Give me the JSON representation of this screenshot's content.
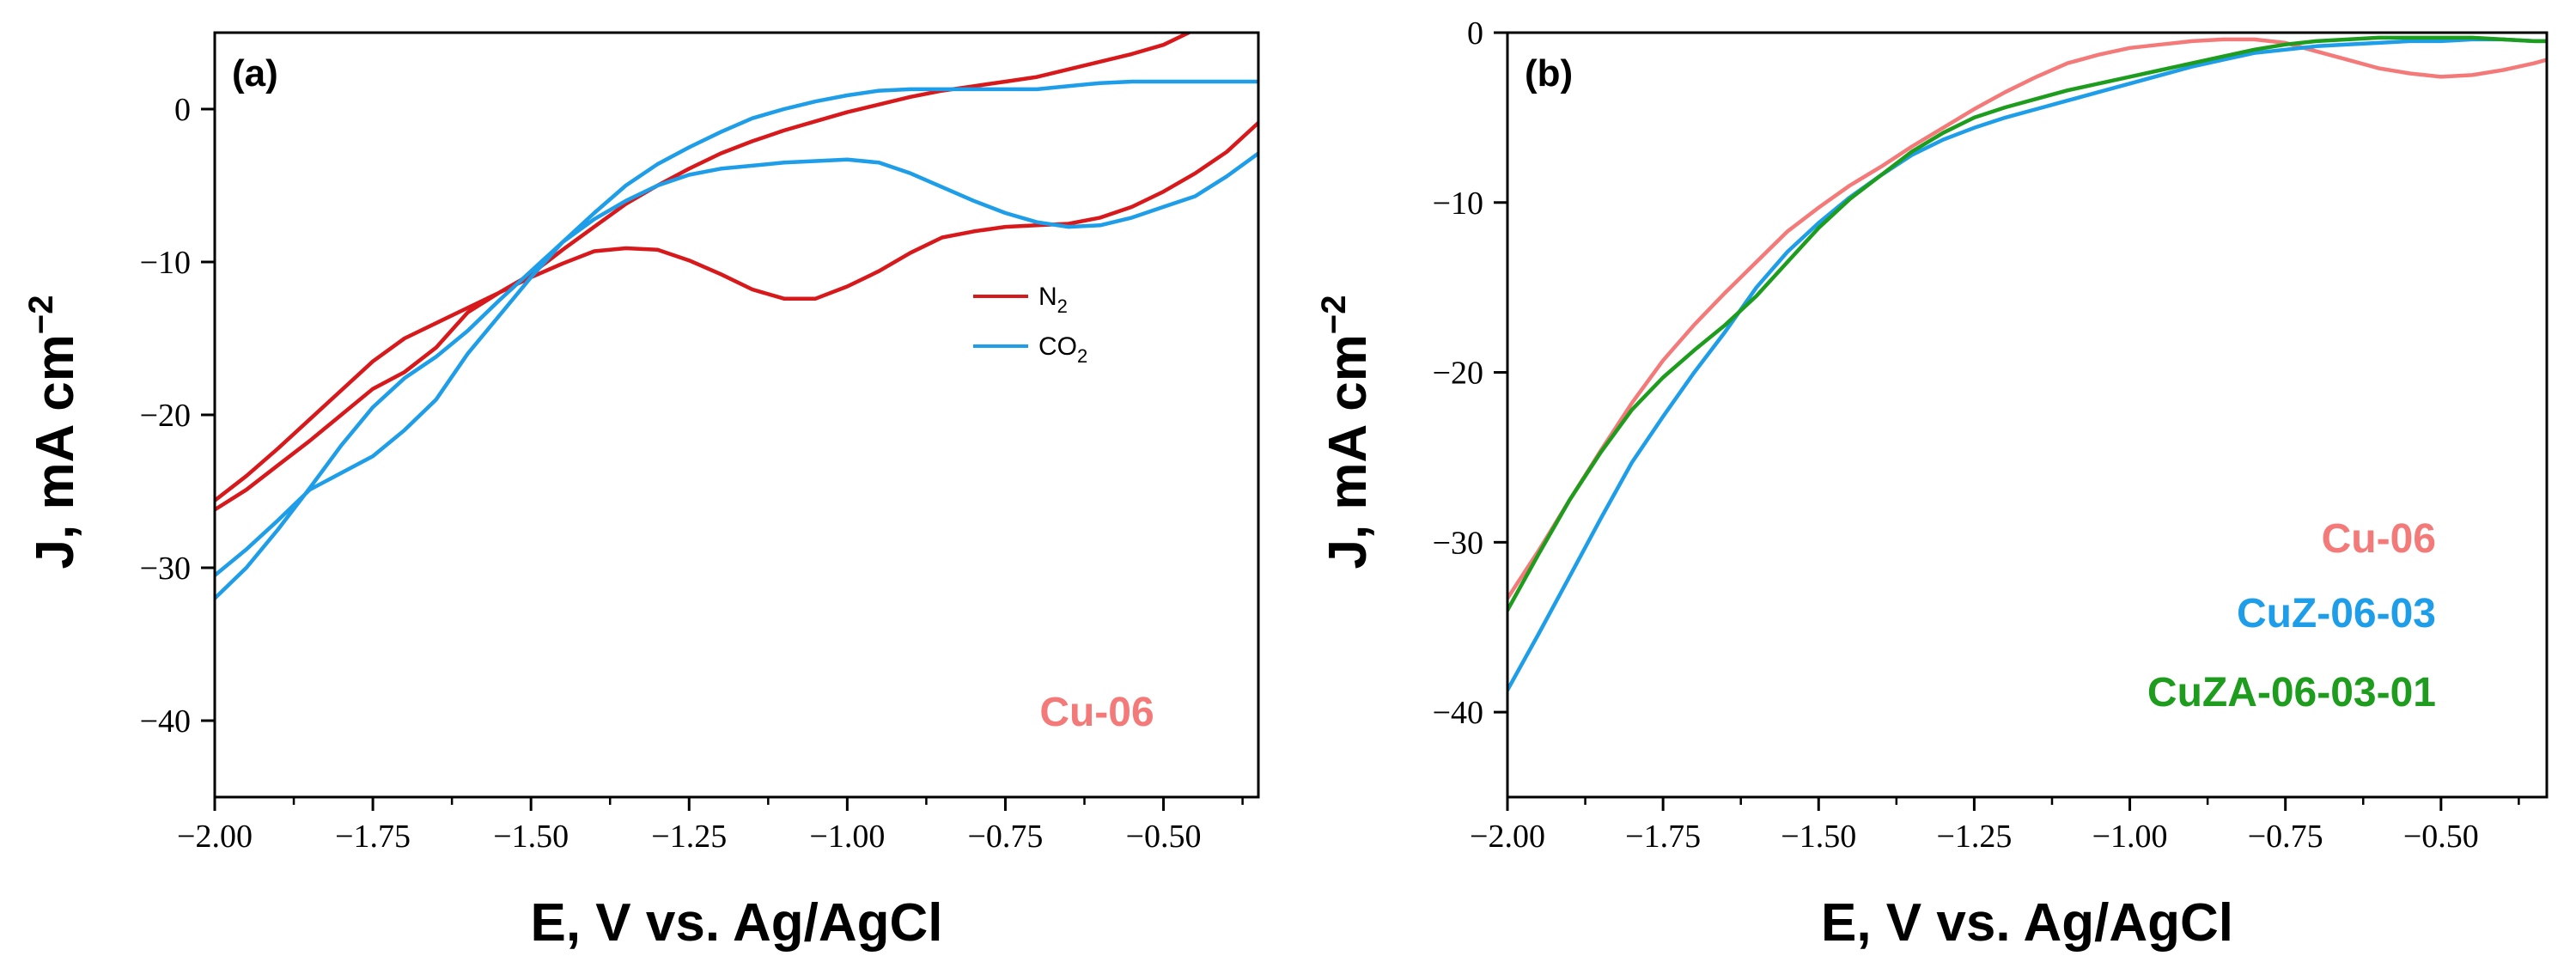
{
  "colors": {
    "n2": "#d7191c",
    "co2": "#1e9de8",
    "cu06": "#f47a7a",
    "cuz": "#1e9de8",
    "cuza": "#1d9c1d"
  },
  "chart_data": [
    {
      "type": "line",
      "panel_label": "(a)",
      "xlabel": "E, V vs. Ag/AgCl",
      "ylabel": "J, mA cm",
      "ylabel_sup": "−2",
      "xlim": [
        -2.0,
        -0.35
      ],
      "ylim": [
        -45,
        5
      ],
      "xticks": [
        -2.0,
        -1.75,
        -1.5,
        -1.25,
        -1.0,
        -0.75,
        -0.5
      ],
      "xtick_labels": [
        "−2.00",
        "−1.75",
        "−1.50",
        "−1.25",
        "−1.00",
        "−0.75",
        "−0.50"
      ],
      "yticks": [
        0,
        -10,
        -20,
        -30,
        -40
      ],
      "ytick_labels": [
        "0",
        "−10",
        "−20",
        "−30",
        "−40"
      ],
      "legend": [
        {
          "base": "N",
          "sub": "2"
        },
        {
          "base": "CO",
          "sub": "2"
        }
      ],
      "sample_label": "Cu-06",
      "series": [
        {
          "name": "N2",
          "color_key": "n2",
          "points": [
            [
              -2.0,
              -26.2
            ],
            [
              -1.95,
              -24.9
            ],
            [
              -1.9,
              -23.3
            ],
            [
              -1.85,
              -21.7
            ],
            [
              -1.8,
              -20.0
            ],
            [
              -1.75,
              -18.3
            ],
            [
              -1.7,
              -17.2
            ],
            [
              -1.65,
              -15.6
            ],
            [
              -1.6,
              -13.3
            ],
            [
              -1.55,
              -12.0
            ],
            [
              -1.5,
              -11.0
            ],
            [
              -1.45,
              -10.1
            ],
            [
              -1.4,
              -9.3
            ],
            [
              -1.35,
              -9.1
            ],
            [
              -1.3,
              -9.2
            ],
            [
              -1.25,
              -9.9
            ],
            [
              -1.2,
              -10.8
            ],
            [
              -1.15,
              -11.8
            ],
            [
              -1.1,
              -12.4
            ],
            [
              -1.05,
              -12.4
            ],
            [
              -1.0,
              -11.6
            ],
            [
              -0.95,
              -10.6
            ],
            [
              -0.9,
              -9.4
            ],
            [
              -0.85,
              -8.4
            ],
            [
              -0.8,
              -8.0
            ],
            [
              -0.75,
              -7.7
            ],
            [
              -0.7,
              -7.6
            ],
            [
              -0.65,
              -7.5
            ],
            [
              -0.6,
              -7.1
            ],
            [
              -0.55,
              -6.4
            ],
            [
              -0.5,
              -5.4
            ],
            [
              -0.45,
              -4.2
            ],
            [
              -0.4,
              -2.8
            ],
            [
              -0.35,
              -0.9
            ],
            null,
            [
              -2.0,
              -25.6
            ],
            [
              -1.95,
              -24.0
            ],
            [
              -1.9,
              -22.2
            ],
            [
              -1.85,
              -20.3
            ],
            [
              -1.8,
              -18.4
            ],
            [
              -1.75,
              -16.5
            ],
            [
              -1.7,
              -15.0
            ],
            [
              -1.65,
              -14.0
            ],
            [
              -1.6,
              -13.0
            ],
            [
              -1.55,
              -12.0
            ],
            [
              -1.5,
              -10.8
            ],
            [
              -1.45,
              -9.2
            ],
            [
              -1.4,
              -7.7
            ],
            [
              -1.35,
              -6.2
            ],
            [
              -1.3,
              -5.0
            ],
            [
              -1.25,
              -3.9
            ],
            [
              -1.2,
              -2.9
            ],
            [
              -1.15,
              -2.1
            ],
            [
              -1.1,
              -1.4
            ],
            [
              -1.05,
              -0.8
            ],
            [
              -1.0,
              -0.2
            ],
            [
              -0.95,
              0.3
            ],
            [
              -0.9,
              0.8
            ],
            [
              -0.85,
              1.2
            ],
            [
              -0.8,
              1.5
            ],
            [
              -0.75,
              1.8
            ],
            [
              -0.7,
              2.1
            ],
            [
              -0.65,
              2.6
            ],
            [
              -0.6,
              3.1
            ],
            [
              -0.55,
              3.6
            ],
            [
              -0.5,
              4.2
            ],
            [
              -0.46,
              5.0
            ]
          ]
        },
        {
          "name": "CO2",
          "color_key": "co2",
          "points": [
            [
              -2.0,
              -32.0
            ],
            [
              -1.95,
              -30.0
            ],
            [
              -1.9,
              -27.5
            ],
            [
              -1.85,
              -24.8
            ],
            [
              -1.8,
              -22.0
            ],
            [
              -1.75,
              -19.5
            ],
            [
              -1.7,
              -17.6
            ],
            [
              -1.65,
              -16.2
            ],
            [
              -1.6,
              -14.5
            ],
            [
              -1.55,
              -12.5
            ],
            [
              -1.5,
              -10.6
            ],
            [
              -1.45,
              -8.7
            ],
            [
              -1.4,
              -7.2
            ],
            [
              -1.35,
              -6.0
            ],
            [
              -1.3,
              -5.0
            ],
            [
              -1.25,
              -4.3
            ],
            [
              -1.2,
              -3.9
            ],
            [
              -1.15,
              -3.7
            ],
            [
              -1.1,
              -3.5
            ],
            [
              -1.05,
              -3.4
            ],
            [
              -1.0,
              -3.3
            ],
            [
              -0.95,
              -3.5
            ],
            [
              -0.9,
              -4.2
            ],
            [
              -0.85,
              -5.1
            ],
            [
              -0.8,
              -6.0
            ],
            [
              -0.75,
              -6.8
            ],
            [
              -0.7,
              -7.4
            ],
            [
              -0.65,
              -7.7
            ],
            [
              -0.6,
              -7.6
            ],
            [
              -0.55,
              -7.1
            ],
            [
              -0.5,
              -6.4
            ],
            [
              -0.45,
              -5.7
            ],
            [
              -0.4,
              -4.4
            ],
            [
              -0.35,
              -2.9
            ],
            null,
            [
              -2.0,
              -30.5
            ],
            [
              -1.95,
              -28.8
            ],
            [
              -1.9,
              -26.9
            ],
            [
              -1.85,
              -24.9
            ],
            [
              -1.8,
              -23.8
            ],
            [
              -1.75,
              -22.7
            ],
            [
              -1.7,
              -21.0
            ],
            [
              -1.65,
              -19.0
            ],
            [
              -1.6,
              -16.0
            ],
            [
              -1.55,
              -13.5
            ],
            [
              -1.5,
              -11.0
            ],
            [
              -1.45,
              -8.7
            ],
            [
              -1.4,
              -6.8
            ],
            [
              -1.35,
              -5.0
            ],
            [
              -1.3,
              -3.6
            ],
            [
              -1.25,
              -2.5
            ],
            [
              -1.2,
              -1.5
            ],
            [
              -1.15,
              -0.6
            ],
            [
              -1.1,
              0.0
            ],
            [
              -1.05,
              0.5
            ],
            [
              -1.0,
              0.9
            ],
            [
              -0.95,
              1.2
            ],
            [
              -0.9,
              1.3
            ],
            [
              -0.85,
              1.3
            ],
            [
              -0.8,
              1.3
            ],
            [
              -0.75,
              1.3
            ],
            [
              -0.7,
              1.3
            ],
            [
              -0.65,
              1.5
            ],
            [
              -0.6,
              1.7
            ],
            [
              -0.55,
              1.8
            ],
            [
              -0.5,
              1.8
            ],
            [
              -0.45,
              1.8
            ],
            [
              -0.4,
              1.8
            ],
            [
              -0.35,
              1.8
            ]
          ]
        }
      ]
    },
    {
      "type": "line",
      "panel_label": "(b)",
      "xlabel": "E, V vs. Ag/AgCl",
      "ylabel": "J, mA cm",
      "ylabel_sup": "−2",
      "xlim": [
        -2.0,
        -0.33
      ],
      "ylim": [
        -45,
        0
      ],
      "xticks": [
        -2.0,
        -1.75,
        -1.5,
        -1.25,
        -1.0,
        -0.75,
        -0.5
      ],
      "xtick_labels": [
        "−2.00",
        "−1.75",
        "−1.50",
        "−1.25",
        "−1.00",
        "−0.75",
        "−0.50"
      ],
      "yticks": [
        0,
        -10,
        -20,
        -30,
        -40
      ],
      "ytick_labels": [
        "0",
        "−10",
        "−20",
        "−30",
        "−40"
      ],
      "series": [
        {
          "name": "Cu-06",
          "color_key": "cu06",
          "points": [
            [
              -2.0,
              -33.3
            ],
            [
              -1.95,
              -30.5
            ],
            [
              -1.9,
              -27.5
            ],
            [
              -1.85,
              -24.6
            ],
            [
              -1.8,
              -21.8
            ],
            [
              -1.75,
              -19.3
            ],
            [
              -1.7,
              -17.2
            ],
            [
              -1.65,
              -15.3
            ],
            [
              -1.6,
              -13.5
            ],
            [
              -1.55,
              -11.7
            ],
            [
              -1.5,
              -10.3
            ],
            [
              -1.45,
              -9.0
            ],
            [
              -1.4,
              -7.9
            ],
            [
              -1.35,
              -6.7
            ],
            [
              -1.3,
              -5.6
            ],
            [
              -1.25,
              -4.5
            ],
            [
              -1.2,
              -3.5
            ],
            [
              -1.15,
              -2.6
            ],
            [
              -1.1,
              -1.8
            ],
            [
              -1.05,
              -1.3
            ],
            [
              -1.0,
              -0.9
            ],
            [
              -0.95,
              -0.7
            ],
            [
              -0.9,
              -0.5
            ],
            [
              -0.85,
              -0.4
            ],
            [
              -0.8,
              -0.4
            ],
            [
              -0.75,
              -0.6
            ],
            [
              -0.7,
              -1.1
            ],
            [
              -0.65,
              -1.6
            ],
            [
              -0.6,
              -2.1
            ],
            [
              -0.55,
              -2.4
            ],
            [
              -0.5,
              -2.6
            ],
            [
              -0.45,
              -2.5
            ],
            [
              -0.4,
              -2.2
            ],
            [
              -0.35,
              -1.8
            ],
            [
              -0.33,
              -1.6
            ]
          ]
        },
        {
          "name": "CuZ-06-03",
          "color_key": "cuz",
          "points": [
            [
              -2.0,
              -38.7
            ],
            [
              -1.95,
              -35.4
            ],
            [
              -1.9,
              -32.0
            ],
            [
              -1.85,
              -28.6
            ],
            [
              -1.8,
              -25.3
            ],
            [
              -1.75,
              -22.6
            ],
            [
              -1.7,
              -20.0
            ],
            [
              -1.65,
              -17.6
            ],
            [
              -1.6,
              -15.0
            ],
            [
              -1.55,
              -12.9
            ],
            [
              -1.5,
              -11.2
            ],
            [
              -1.45,
              -9.7
            ],
            [
              -1.4,
              -8.4
            ],
            [
              -1.35,
              -7.2
            ],
            [
              -1.3,
              -6.3
            ],
            [
              -1.25,
              -5.6
            ],
            [
              -1.2,
              -5.0
            ],
            [
              -1.15,
              -4.5
            ],
            [
              -1.1,
              -4.0
            ],
            [
              -1.05,
              -3.5
            ],
            [
              -1.0,
              -3.0
            ],
            [
              -0.95,
              -2.5
            ],
            [
              -0.9,
              -2.0
            ],
            [
              -0.85,
              -1.6
            ],
            [
              -0.8,
              -1.2
            ],
            [
              -0.75,
              -1.0
            ],
            [
              -0.7,
              -0.8
            ],
            [
              -0.65,
              -0.7
            ],
            [
              -0.6,
              -0.6
            ],
            [
              -0.55,
              -0.5
            ],
            [
              -0.5,
              -0.5
            ],
            [
              -0.45,
              -0.4
            ],
            [
              -0.4,
              -0.4
            ],
            [
              -0.35,
              -0.5
            ],
            [
              -0.33,
              -0.5
            ]
          ]
        },
        {
          "name": "CuZA-06-03-01",
          "color_key": "cuza",
          "points": [
            [
              -2.0,
              -34.0
            ],
            [
              -1.95,
              -30.7
            ],
            [
              -1.9,
              -27.5
            ],
            [
              -1.85,
              -24.7
            ],
            [
              -1.8,
              -22.2
            ],
            [
              -1.75,
              -20.3
            ],
            [
              -1.7,
              -18.7
            ],
            [
              -1.65,
              -17.2
            ],
            [
              -1.6,
              -15.5
            ],
            [
              -1.55,
              -13.5
            ],
            [
              -1.5,
              -11.5
            ],
            [
              -1.45,
              -9.8
            ],
            [
              -1.4,
              -8.4
            ],
            [
              -1.35,
              -7.0
            ],
            [
              -1.3,
              -5.9
            ],
            [
              -1.25,
              -5.0
            ],
            [
              -1.2,
              -4.4
            ],
            [
              -1.15,
              -3.9
            ],
            [
              -1.1,
              -3.4
            ],
            [
              -1.05,
              -3.0
            ],
            [
              -1.0,
              -2.6
            ],
            [
              -0.95,
              -2.2
            ],
            [
              -0.9,
              -1.8
            ],
            [
              -0.85,
              -1.4
            ],
            [
              -0.8,
              -1.0
            ],
            [
              -0.75,
              -0.7
            ],
            [
              -0.7,
              -0.5
            ],
            [
              -0.65,
              -0.4
            ],
            [
              -0.6,
              -0.3
            ],
            [
              -0.55,
              -0.3
            ],
            [
              -0.5,
              -0.3
            ],
            [
              -0.45,
              -0.3
            ],
            [
              -0.4,
              -0.4
            ],
            [
              -0.35,
              -0.5
            ],
            [
              -0.33,
              -0.5
            ]
          ]
        }
      ],
      "legend_labels": [
        "Cu-06",
        "CuZ-06-03",
        "CuZA-06-03-01"
      ]
    }
  ]
}
